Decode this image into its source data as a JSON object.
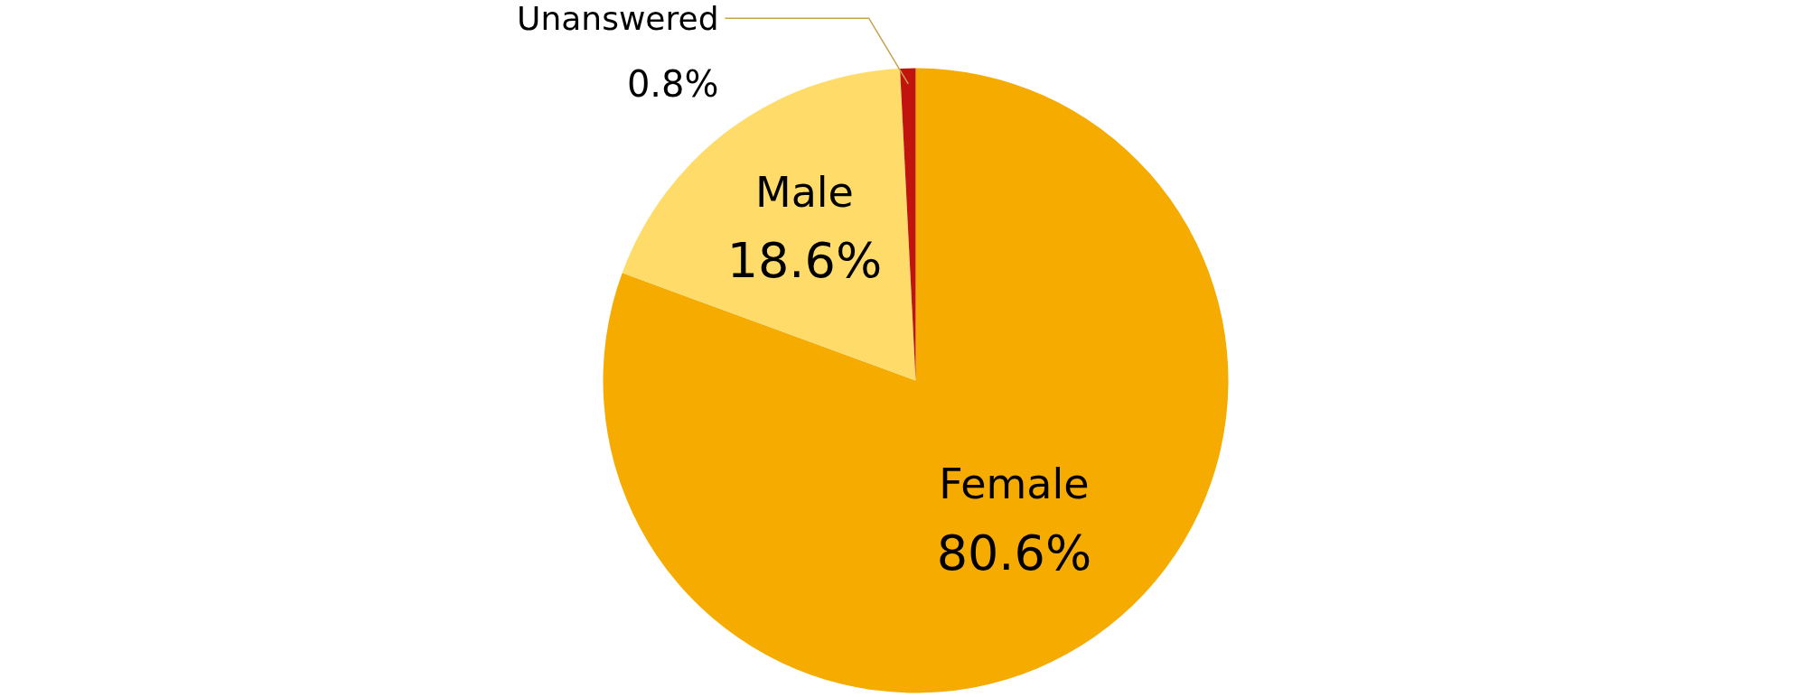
{
  "chart_data": {
    "type": "pie",
    "categories": [
      "Female",
      "Male",
      "Unanswered"
    ],
    "values": [
      80.6,
      18.6,
      0.8
    ],
    "colors": [
      "#f5ab00",
      "#ffdb6a",
      "#c0140c"
    ],
    "value_labels": [
      "80.6%",
      "18.6%",
      "0.8%"
    ]
  }
}
